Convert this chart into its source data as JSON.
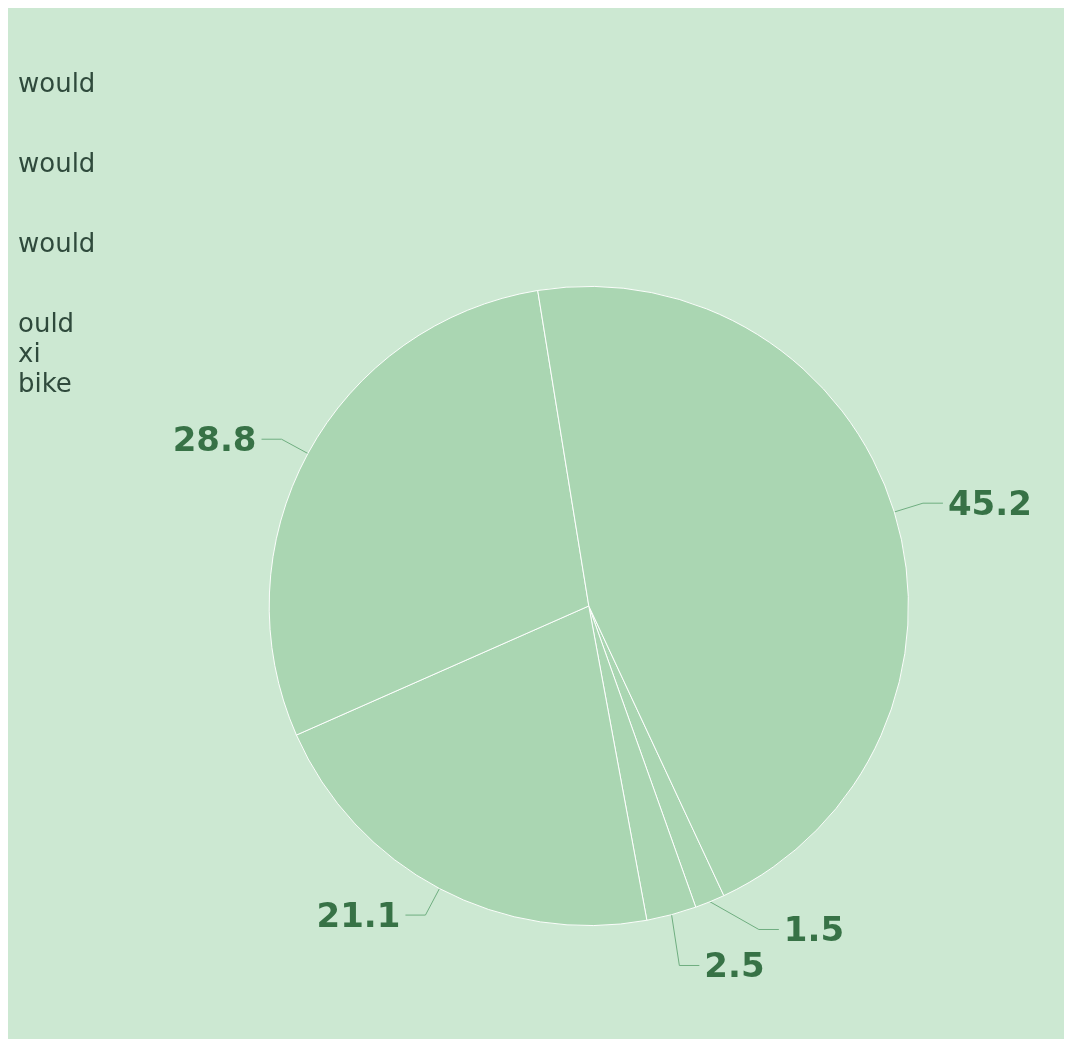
{
  "chart_data": {
    "type": "pie",
    "categories": [
      null,
      null,
      null,
      null,
      null
    ],
    "values": [
      1.5,
      2.5,
      21.1,
      28.8,
      45.2
    ],
    "colors": [
      "#a8d5b0",
      "#a8d5b0",
      "#a8d5b0",
      "#a8d5b0",
      "#a8d5b0"
    ],
    "data_labels": true,
    "annotations": [
      "would",
      "would",
      "would",
      "ould\nxi\nbike"
    ]
  }
}
